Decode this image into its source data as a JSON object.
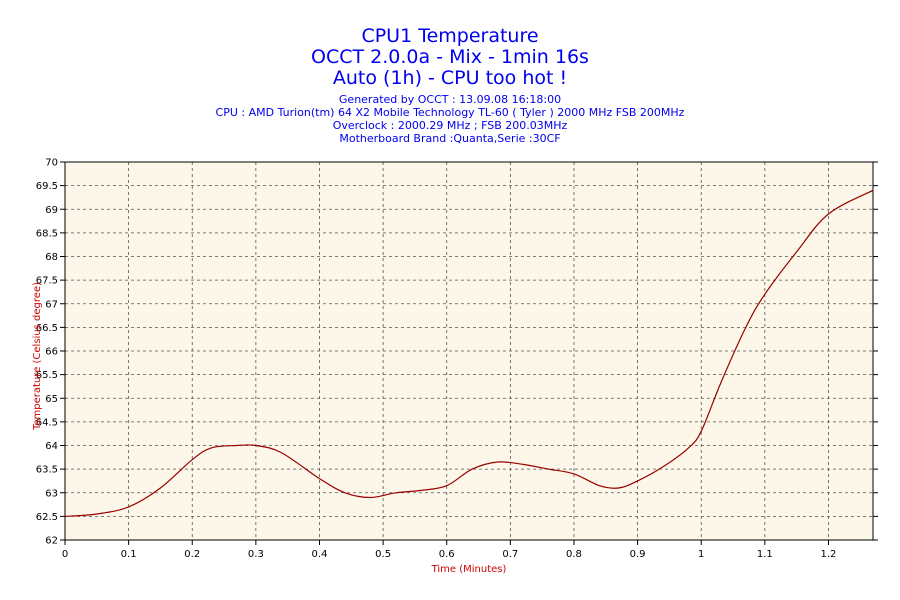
{
  "header": {
    "title_lines": [
      "CPU1 Temperature",
      "OCCT 2.0.0a - Mix - 1min 16s",
      "Auto (1h) - CPU too hot !"
    ],
    "info_lines": [
      "Generated by OCCT : 13.09.08 16:18:00",
      "CPU : AMD Turion(tm) 64 X2 Mobile Technology TL-60 ( Tyler ) 2000 MHz FSB 200MHz",
      "Overclock : 2000.29 MHz ; FSB 200.03MHz",
      "Motherboard Brand :Quanta,Serie :30CF"
    ]
  },
  "colors": {
    "plot_background": "#fcf7e8",
    "line": "#990000",
    "grid": "#555555",
    "title": "#0000ee",
    "axis_title": "#cc0000"
  },
  "chart_data": {
    "type": "line",
    "title": "CPU1 Temperature",
    "xlabel": "Time (Minutes)",
    "ylabel": "Temperature (Celsius degree)",
    "xlim": [
      0,
      1.27
    ],
    "ylim": [
      62,
      70
    ],
    "grid": true,
    "xticks": [
      "0",
      "0.1",
      "0.2",
      "0.3",
      "0.4",
      "0.5",
      "0.6",
      "0.7",
      "0.8",
      "0.9",
      "1",
      "1.1",
      "1.2"
    ],
    "yticks": [
      "62",
      "62.5",
      "63",
      "63.5",
      "64",
      "64.5",
      "65",
      "65.5",
      "66",
      "66.5",
      "67",
      "67.5",
      "68",
      "68.5",
      "69",
      "69.5",
      "70"
    ],
    "series": [
      {
        "x": [
          0,
          0.05,
          0.1,
          0.15,
          0.2,
          0.23,
          0.27,
          0.3,
          0.34,
          0.4,
          0.44,
          0.48,
          0.52,
          0.56,
          0.6,
          0.64,
          0.68,
          0.72,
          0.76,
          0.8,
          0.84,
          0.87,
          0.9,
          0.94,
          0.98,
          1.0,
          1.03,
          1.07,
          1.1,
          1.15,
          1.2,
          1.27
        ],
        "y": [
          62.5,
          62.55,
          62.7,
          63.1,
          63.7,
          63.95,
          64.0,
          64.0,
          63.85,
          63.3,
          63.0,
          62.9,
          63.0,
          63.05,
          63.15,
          63.5,
          63.65,
          63.6,
          63.5,
          63.4,
          63.15,
          63.1,
          63.25,
          63.55,
          63.95,
          64.3,
          65.3,
          66.5,
          67.2,
          68.1,
          68.9,
          69.4
        ]
      }
    ]
  }
}
